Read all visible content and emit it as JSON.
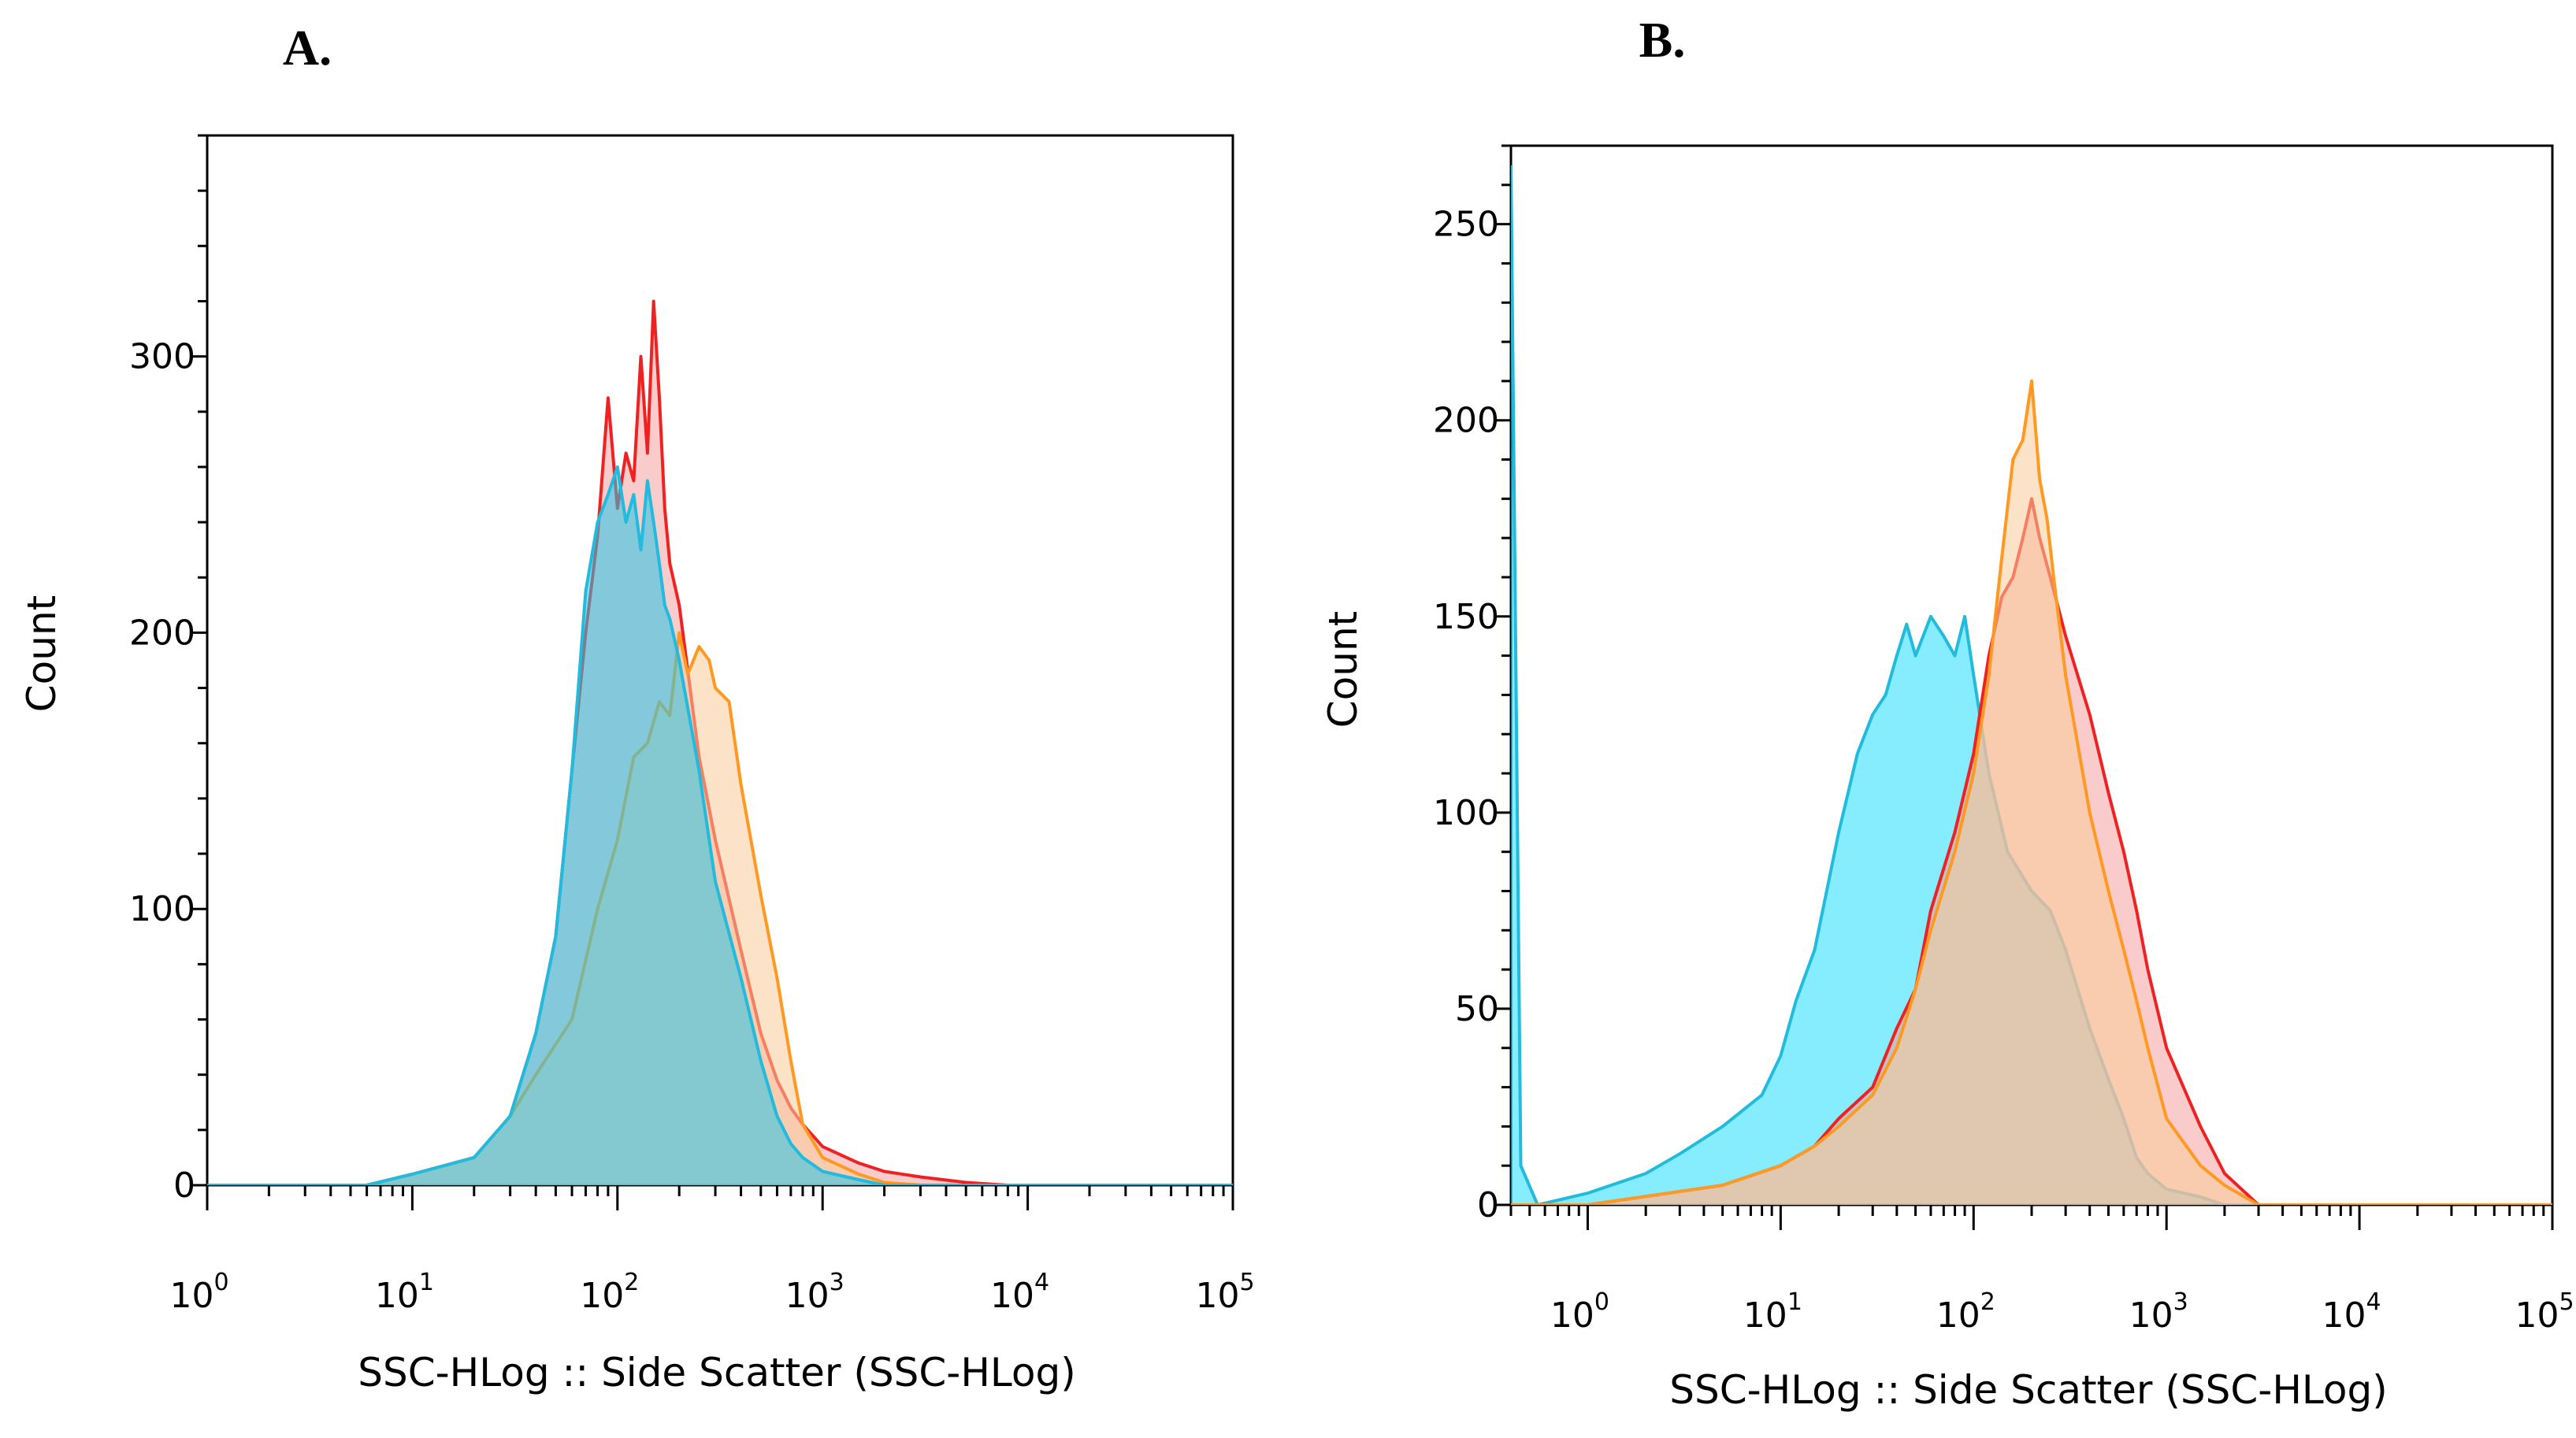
{
  "chart_data": [
    {
      "type": "area",
      "panel_label": "A.",
      "xlabel": "SSC-HLog :: Side Scatter (SSC-HLog)",
      "ylabel": "Count",
      "xscale": "log",
      "xlim": [
        1,
        100000
      ],
      "ylim": [
        0,
        380
      ],
      "xticks": [
        {
          "value": 1,
          "base": "10",
          "exp": "0"
        },
        {
          "value": 10,
          "base": "10",
          "exp": "1"
        },
        {
          "value": 100,
          "base": "10",
          "exp": "2"
        },
        {
          "value": 1000,
          "base": "10",
          "exp": "3"
        },
        {
          "value": 10000,
          "base": "10",
          "exp": "4"
        },
        {
          "value": 100000,
          "base": "10",
          "exp": "5"
        }
      ],
      "yticks": [
        {
          "value": 0,
          "label": "0"
        },
        {
          "value": 100,
          "label": "100"
        },
        {
          "value": 200,
          "label": "200"
        },
        {
          "value": 300,
          "label": "300"
        }
      ],
      "grid": false,
      "series": [
        {
          "color": "#ee2222",
          "fill": "#f4a0a0",
          "points": [
            [
              1,
              0
            ],
            [
              6,
              0
            ],
            [
              10,
              4
            ],
            [
              20,
              10
            ],
            [
              30,
              25
            ],
            [
              40,
              55
            ],
            [
              50,
              90
            ],
            [
              60,
              150
            ],
            [
              70,
              200
            ],
            [
              80,
              235
            ],
            [
              90,
              285
            ],
            [
              100,
              245
            ],
            [
              110,
              265
            ],
            [
              120,
              255
            ],
            [
              130,
              300
            ],
            [
              140,
              265
            ],
            [
              150,
              320
            ],
            [
              160,
              285
            ],
            [
              170,
              245
            ],
            [
              180,
              225
            ],
            [
              200,
              210
            ],
            [
              250,
              155
            ],
            [
              300,
              125
            ],
            [
              400,
              85
            ],
            [
              500,
              55
            ],
            [
              600,
              38
            ],
            [
              700,
              28
            ],
            [
              800,
              22
            ],
            [
              1000,
              14
            ],
            [
              1500,
              8
            ],
            [
              2000,
              5
            ],
            [
              3000,
              3
            ],
            [
              5000,
              1
            ],
            [
              8000,
              0
            ],
            [
              100000,
              0
            ]
          ]
        },
        {
          "color": "#ff9922",
          "fill": "#f9cc99",
          "points": [
            [
              1,
              0
            ],
            [
              6,
              0
            ],
            [
              10,
              4
            ],
            [
              20,
              10
            ],
            [
              30,
              25
            ],
            [
              40,
              40
            ],
            [
              60,
              60
            ],
            [
              80,
              100
            ],
            [
              100,
              125
            ],
            [
              120,
              155
            ],
            [
              140,
              160
            ],
            [
              160,
              175
            ],
            [
              180,
              170
            ],
            [
              200,
              200
            ],
            [
              220,
              185
            ],
            [
              250,
              195
            ],
            [
              280,
              190
            ],
            [
              300,
              180
            ],
            [
              350,
              175
            ],
            [
              400,
              145
            ],
            [
              500,
              105
            ],
            [
              600,
              75
            ],
            [
              700,
              45
            ],
            [
              800,
              22
            ],
            [
              1000,
              10
            ],
            [
              1500,
              4
            ],
            [
              2000,
              1
            ],
            [
              3000,
              0
            ],
            [
              100000,
              0
            ]
          ]
        },
        {
          "color": "#22bbdd",
          "fill": "#22c8ea",
          "points": [
            [
              1,
              0
            ],
            [
              6,
              0
            ],
            [
              10,
              4
            ],
            [
              20,
              10
            ],
            [
              30,
              25
            ],
            [
              40,
              55
            ],
            [
              50,
              90
            ],
            [
              60,
              150
            ],
            [
              70,
              215
            ],
            [
              80,
              240
            ],
            [
              90,
              250
            ],
            [
              100,
              260
            ],
            [
              110,
              240
            ],
            [
              120,
              250
            ],
            [
              130,
              230
            ],
            [
              140,
              255
            ],
            [
              150,
              240
            ],
            [
              160,
              225
            ],
            [
              170,
              210
            ],
            [
              180,
              205
            ],
            [
              200,
              190
            ],
            [
              250,
              150
            ],
            [
              300,
              110
            ],
            [
              400,
              75
            ],
            [
              500,
              45
            ],
            [
              600,
              25
            ],
            [
              700,
              15
            ],
            [
              800,
              10
            ],
            [
              1000,
              5
            ],
            [
              1500,
              2
            ],
            [
              2000,
              0
            ],
            [
              100000,
              0
            ]
          ]
        }
      ]
    },
    {
      "type": "area",
      "panel_label": "B.",
      "xlabel": "SSC-HLog :: Side Scatter (SSC-HLog)",
      "ylabel": "Count",
      "xscale": "log",
      "xlim": [
        0.4,
        100000
      ],
      "ylim": [
        0,
        270
      ],
      "xticks": [
        {
          "value": 1,
          "base": "10",
          "exp": "0"
        },
        {
          "value": 10,
          "base": "10",
          "exp": "1"
        },
        {
          "value": 100,
          "base": "10",
          "exp": "2"
        },
        {
          "value": 1000,
          "base": "10",
          "exp": "3"
        },
        {
          "value": 10000,
          "base": "10",
          "exp": "4"
        },
        {
          "value": 100000,
          "base": "10",
          "exp": "5"
        }
      ],
      "yticks": [
        {
          "value": 0,
          "label": "0"
        },
        {
          "value": 50,
          "label": "50"
        },
        {
          "value": 100,
          "label": "100"
        },
        {
          "value": 150,
          "label": "150"
        },
        {
          "value": 200,
          "label": "200"
        },
        {
          "value": 250,
          "label": "250"
        }
      ],
      "grid": false,
      "series": [
        {
          "color": "#22bbdd",
          "fill": "#22ddff",
          "points": [
            [
              0.4,
              265
            ],
            [
              0.45,
              10
            ],
            [
              0.55,
              0
            ],
            [
              1,
              3
            ],
            [
              2,
              8
            ],
            [
              3,
              13
            ],
            [
              5,
              20
            ],
            [
              8,
              28
            ],
            [
              10,
              38
            ],
            [
              12,
              52
            ],
            [
              15,
              65
            ],
            [
              20,
              95
            ],
            [
              25,
              115
            ],
            [
              30,
              125
            ],
            [
              35,
              130
            ],
            [
              40,
              140
            ],
            [
              45,
              148
            ],
            [
              50,
              140
            ],
            [
              60,
              150
            ],
            [
              70,
              145
            ],
            [
              80,
              140
            ],
            [
              90,
              150
            ],
            [
              100,
              135
            ],
            [
              120,
              110
            ],
            [
              150,
              90
            ],
            [
              200,
              80
            ],
            [
              250,
              75
            ],
            [
              300,
              65
            ],
            [
              400,
              45
            ],
            [
              500,
              32
            ],
            [
              600,
              22
            ],
            [
              700,
              12
            ],
            [
              800,
              8
            ],
            [
              1000,
              4
            ],
            [
              1500,
              2
            ],
            [
              2000,
              0
            ],
            [
              100000,
              0
            ]
          ]
        },
        {
          "color": "#ee2222",
          "fill": "#f4a0a0",
          "points": [
            [
              0.4,
              0
            ],
            [
              1,
              0
            ],
            [
              5,
              5
            ],
            [
              10,
              10
            ],
            [
              15,
              15
            ],
            [
              20,
              22
            ],
            [
              30,
              30
            ],
            [
              40,
              45
            ],
            [
              50,
              55
            ],
            [
              60,
              75
            ],
            [
              80,
              95
            ],
            [
              100,
              115
            ],
            [
              120,
              140
            ],
            [
              140,
              155
            ],
            [
              160,
              160
            ],
            [
              180,
              170
            ],
            [
              200,
              180
            ],
            [
              220,
              170
            ],
            [
              250,
              160
            ],
            [
              300,
              145
            ],
            [
              400,
              125
            ],
            [
              500,
              105
            ],
            [
              600,
              90
            ],
            [
              700,
              75
            ],
            [
              800,
              60
            ],
            [
              1000,
              40
            ],
            [
              1500,
              20
            ],
            [
              2000,
              8
            ],
            [
              3000,
              0
            ],
            [
              100000,
              0
            ]
          ]
        },
        {
          "color": "#ff9922",
          "fill": "#f9cc99",
          "points": [
            [
              0.4,
              0
            ],
            [
              0.55,
              0
            ],
            [
              1,
              0
            ],
            [
              5,
              5
            ],
            [
              10,
              10
            ],
            [
              15,
              15
            ],
            [
              20,
              20
            ],
            [
              30,
              28
            ],
            [
              40,
              40
            ],
            [
              50,
              55
            ],
            [
              60,
              70
            ],
            [
              80,
              90
            ],
            [
              100,
              110
            ],
            [
              120,
              135
            ],
            [
              140,
              165
            ],
            [
              160,
              190
            ],
            [
              180,
              195
            ],
            [
              200,
              210
            ],
            [
              220,
              185
            ],
            [
              240,
              175
            ],
            [
              260,
              160
            ],
            [
              300,
              135
            ],
            [
              400,
              100
            ],
            [
              500,
              80
            ],
            [
              600,
              65
            ],
            [
              700,
              52
            ],
            [
              800,
              40
            ],
            [
              1000,
              22
            ],
            [
              1500,
              10
            ],
            [
              2000,
              5
            ],
            [
              3000,
              0
            ],
            [
              100000,
              0
            ]
          ]
        }
      ]
    }
  ]
}
